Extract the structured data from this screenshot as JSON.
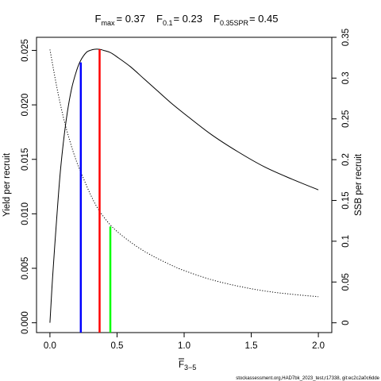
{
  "chart_data": {
    "type": "line",
    "title": {
      "fmax_label": "F",
      "fmax_sub": "max",
      "fmax_value": "= 0.37",
      "f01_label": "F",
      "f01_sub": "0.1",
      "f01_value": "= 0.23",
      "fspr_label": "F",
      "fspr_sub": "0.35SPR",
      "fspr_value": "= 0.45"
    },
    "xlabel": {
      "main": "F",
      "sub": "3−5"
    },
    "ylabel_left": "Yield per recruit",
    "ylabel_right": "SSB per recruit",
    "xlim": [
      -0.1,
      2.1
    ],
    "ylim_left": [
      -0.0009,
      0.0262
    ],
    "ylim_right": [
      -0.012,
      0.35
    ],
    "x_ticks": [
      {
        "value": 0.0,
        "label": "0.0"
      },
      {
        "value": 0.5,
        "label": "0.5"
      },
      {
        "value": 1.0,
        "label": "1.0"
      },
      {
        "value": 1.5,
        "label": "1.5"
      },
      {
        "value": 2.0,
        "label": "2.0"
      }
    ],
    "y_ticks_left": [
      {
        "value": 0.0,
        "label": "0.000"
      },
      {
        "value": 0.005,
        "label": "0.005"
      },
      {
        "value": 0.01,
        "label": "0.010"
      },
      {
        "value": 0.015,
        "label": "0.015"
      },
      {
        "value": 0.02,
        "label": "0.020"
      },
      {
        "value": 0.025,
        "label": "0.025"
      }
    ],
    "y_ticks_right": [
      {
        "value": 0.0,
        "label": "0"
      },
      {
        "value": 0.05,
        "label": "0.05"
      },
      {
        "value": 0.1,
        "label": "0.1"
      },
      {
        "value": 0.15,
        "label": "0.15"
      },
      {
        "value": 0.2,
        "label": "0.2"
      },
      {
        "value": 0.25,
        "label": "0.25"
      },
      {
        "value": 0.3,
        "label": "0.3"
      },
      {
        "value": 0.35,
        "label": "0.35"
      }
    ],
    "series": [
      {
        "axis": "left",
        "style": "solid",
        "color": "#000000",
        "x": [
          0.0,
          0.02,
          0.05,
          0.08,
          0.12,
          0.16,
          0.2,
          0.23,
          0.27,
          0.3,
          0.33,
          0.37,
          0.4,
          0.45,
          0.5,
          0.6,
          0.7,
          0.8,
          0.9,
          1.0,
          1.2,
          1.4,
          1.6,
          1.8,
          2.0
        ],
        "y": [
          0.0,
          0.0042,
          0.0095,
          0.0142,
          0.0185,
          0.0214,
          0.0232,
          0.0241,
          0.0248,
          0.025,
          0.0251,
          0.0251,
          0.025,
          0.0248,
          0.0244,
          0.0235,
          0.0224,
          0.0213,
          0.0202,
          0.0192,
          0.0173,
          0.0157,
          0.0143,
          0.0132,
          0.0122
        ]
      },
      {
        "axis": "right",
        "style": "dotted",
        "color": "#000000",
        "x": [
          0.0,
          0.05,
          0.1,
          0.15,
          0.2,
          0.25,
          0.3,
          0.35,
          0.4,
          0.45,
          0.5,
          0.6,
          0.7,
          0.8,
          0.9,
          1.0,
          1.2,
          1.4,
          1.6,
          1.8,
          2.0
        ],
        "y": [
          0.335,
          0.29,
          0.252,
          0.222,
          0.197,
          0.177,
          0.158,
          0.142,
          0.13,
          0.12,
          0.112,
          0.099,
          0.088,
          0.079,
          0.071,
          0.064,
          0.053,
          0.045,
          0.039,
          0.035,
          0.032
        ]
      }
    ],
    "reference_lines": [
      {
        "name": "F0.1",
        "x": 0.23,
        "axis": "left",
        "y_top": 0.0239,
        "color": "#0000ff"
      },
      {
        "name": "Fmax",
        "x": 0.37,
        "axis": "left",
        "y_top": 0.0251,
        "color": "#ff0000"
      },
      {
        "name": "F0.35SPR",
        "x": 0.45,
        "axis": "right",
        "y_top": 0.118,
        "color": "#00ff00"
      }
    ],
    "grid": false,
    "legend": "none"
  },
  "footer_text": "stockassessment.org,HAD7bk_2023_test,r17338, git:ec2c2a0c6dde"
}
